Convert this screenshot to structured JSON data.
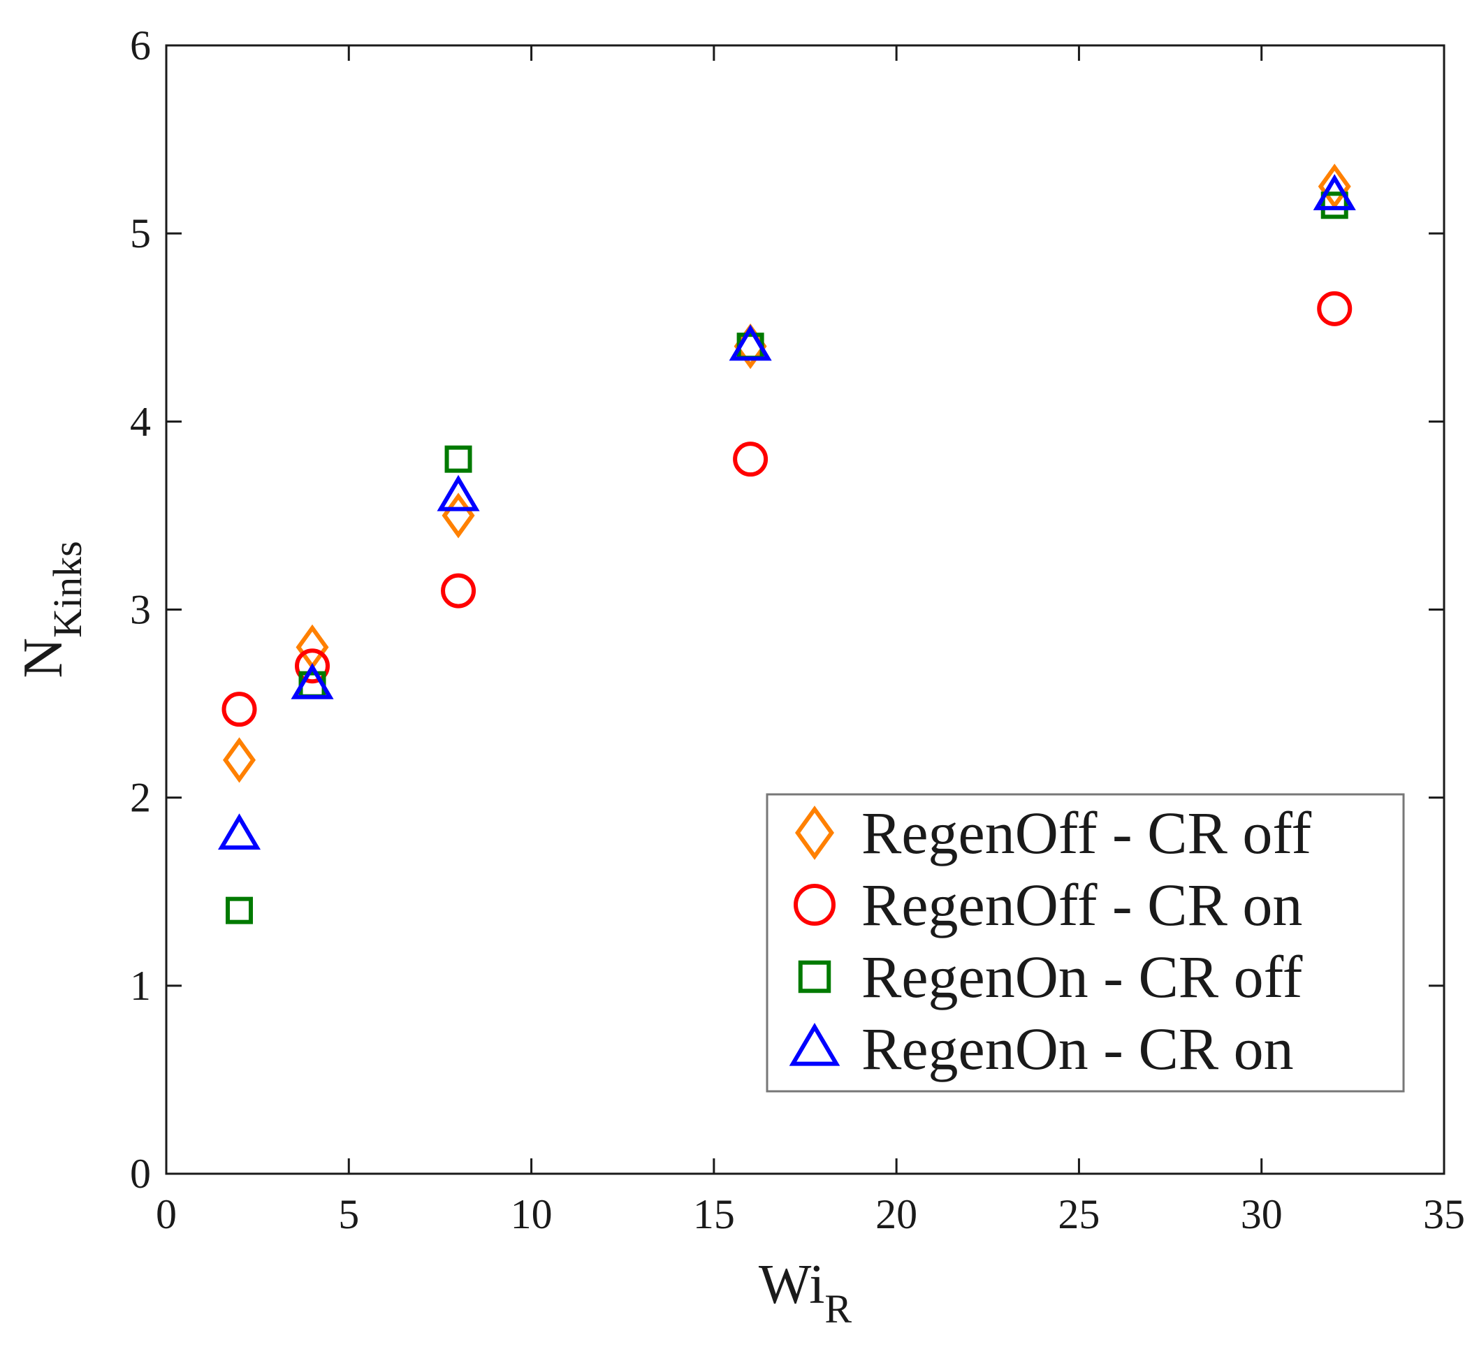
{
  "chart_data": {
    "type": "scatter",
    "title": "",
    "xlabel": {
      "main": "Wi",
      "sub": "R"
    },
    "ylabel": {
      "main": "N",
      "sub": "Kinks"
    },
    "xlim": [
      0,
      35
    ],
    "ylim": [
      0,
      6
    ],
    "xticks": [
      0,
      5,
      10,
      15,
      20,
      25,
      30,
      35
    ],
    "yticks": [
      0,
      1,
      2,
      3,
      4,
      5,
      6
    ],
    "grid": false,
    "legend_position": "lower-right",
    "series": [
      {
        "name": "RegenOff - CR off",
        "marker": "diamond",
        "color": "#ff8000",
        "x": [
          2,
          4,
          8,
          16,
          32
        ],
        "y": [
          2.2,
          2.8,
          3.5,
          4.4,
          5.25
        ]
      },
      {
        "name": "RegenOff - CR on",
        "marker": "circle",
        "color": "#ff0000",
        "x": [
          2,
          4,
          8,
          16,
          32
        ],
        "y": [
          2.47,
          2.7,
          3.1,
          3.8,
          4.6
        ]
      },
      {
        "name": "RegenOn - CR off",
        "marker": "square",
        "color": "#007a00",
        "x": [
          2,
          4,
          8,
          16,
          32
        ],
        "y": [
          1.4,
          2.6,
          3.8,
          4.4,
          5.15
        ]
      },
      {
        "name": "RegenOn - CR on",
        "marker": "triangle",
        "color": "#0000ff",
        "x": [
          2,
          4,
          8,
          16,
          32
        ],
        "y": [
          1.8,
          2.6,
          3.6,
          4.4,
          5.2
        ]
      }
    ]
  }
}
